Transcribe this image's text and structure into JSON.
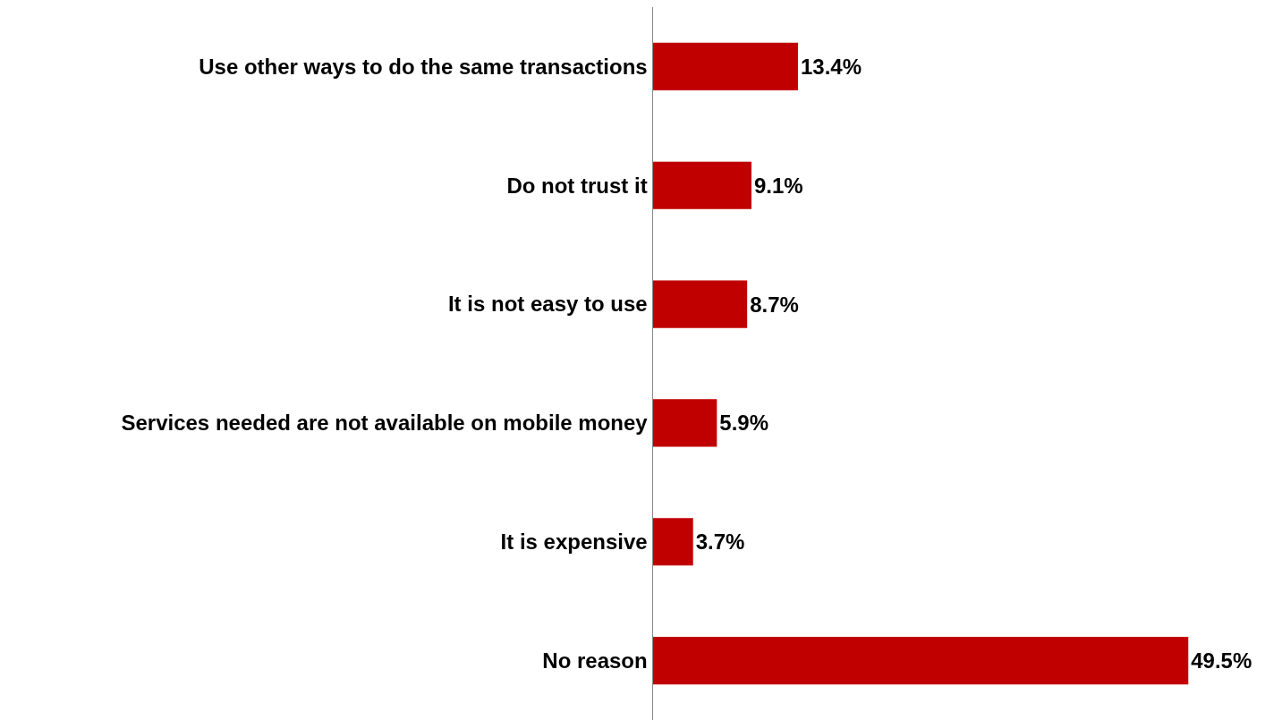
{
  "chart_data": {
    "type": "bar",
    "orientation": "horizontal",
    "categories": [
      "Use other ways to do the same transactions",
      "Do not trust it",
      "It is not easy to use",
      "Services needed are not available on mobile money",
      "It is expensive",
      "No reason"
    ],
    "values": [
      13.4,
      9.1,
      8.7,
      5.9,
      3.7,
      49.5
    ],
    "value_labels": [
      "13.4%",
      "9.1%",
      "8.7%",
      "5.9%",
      "3.7%",
      "49.5%"
    ],
    "color": "#c00000",
    "grid": false
  }
}
